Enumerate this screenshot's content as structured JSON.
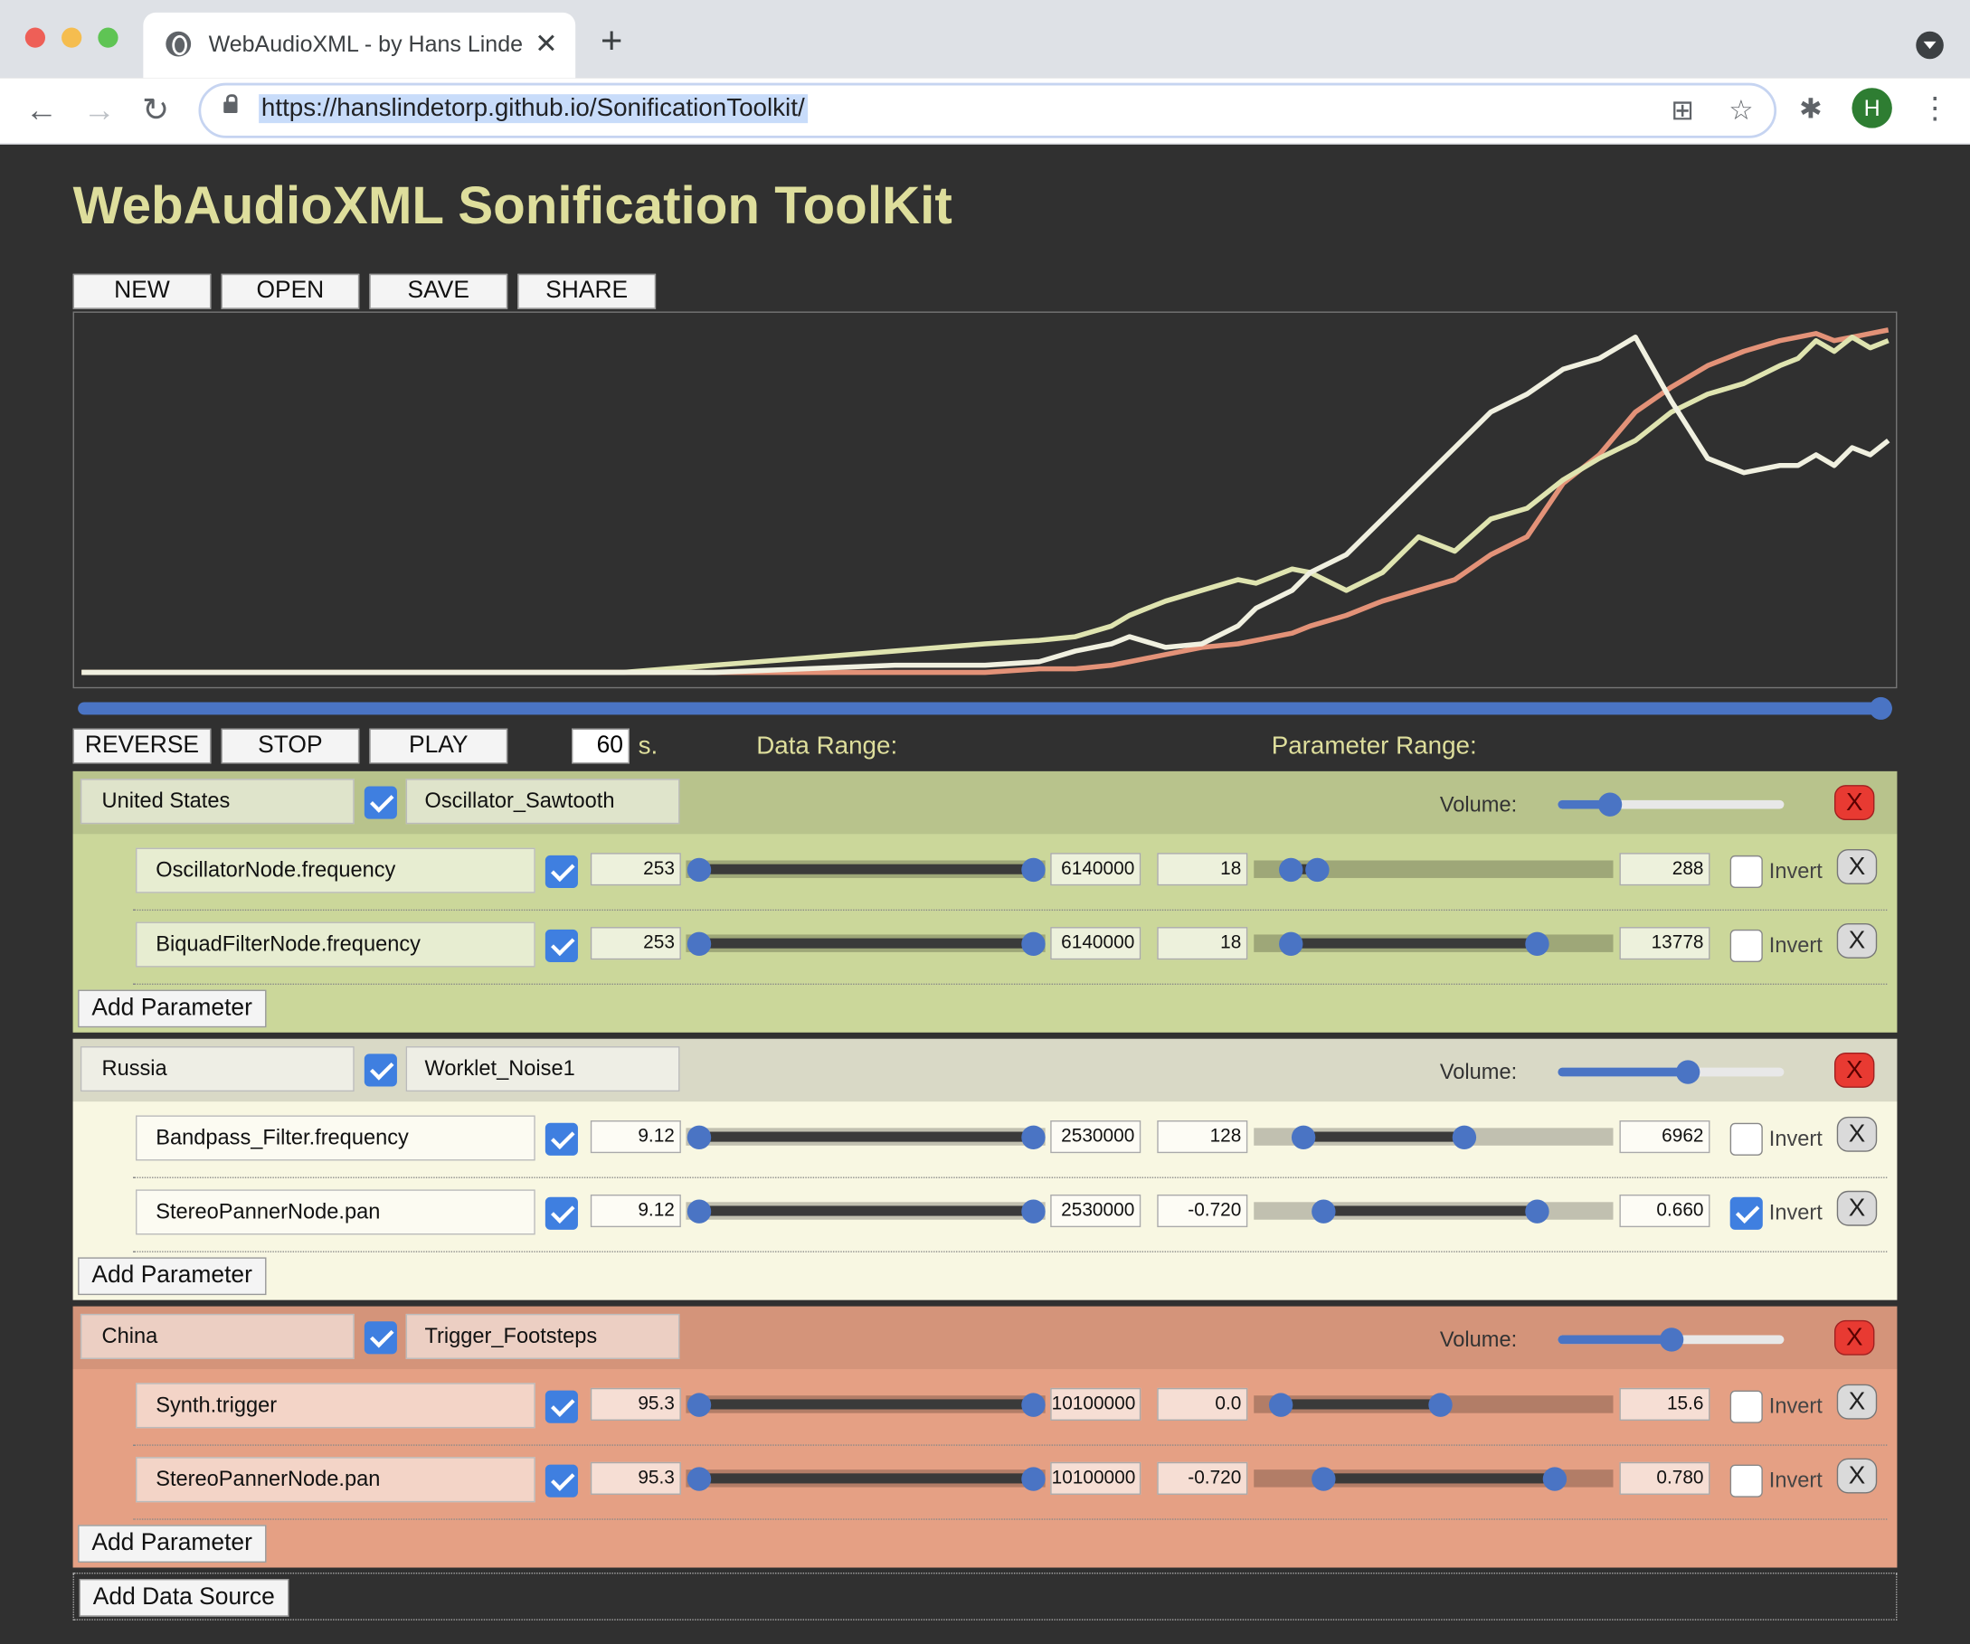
{
  "browser": {
    "tab_title": "WebAudioXML - by Hans Linde",
    "url": "https://hanslindetorp.github.io/SonificationToolkit/",
    "avatar_letter": "H"
  },
  "page": {
    "title": "WebAudioXML Sonification ToolKit",
    "file_buttons": [
      "NEW",
      "OPEN",
      "SAVE",
      "SHARE"
    ],
    "transport_buttons": [
      "REVERSE",
      "STOP",
      "PLAY"
    ],
    "duration_value": "60",
    "duration_unit": "s.",
    "data_range_label": "Data Range:",
    "parameter_range_label": "Parameter Range:",
    "add_data_source_label": "Add Data Source",
    "add_parameter_label": "Add Parameter",
    "volume_label": "Volume:",
    "invert_label": "Invert",
    "remove_label": "X",
    "playback_progress": 1.0
  },
  "colors": {
    "page_bg": "#303030",
    "title": "#dede9c",
    "slider_blue": "#4a74c4",
    "source_1": "#cbd79a",
    "source_2": "#f8f7e2",
    "source_3": "#e5a084",
    "line_1": "#f0f0e0",
    "line_2": "#dfe4b0",
    "line_3": "#e39278"
  },
  "sources": [
    {
      "name": "United States",
      "enabled": true,
      "synth": "Oscillator_Sawtooth",
      "volume": 0.23,
      "params": [
        {
          "name": "OscillatorNode.frequency",
          "enabled": true,
          "data_min": "253",
          "data_max": "6140000",
          "data_lo": 0.0,
          "data_hi": 1.0,
          "param_min": "18",
          "param_max": "288",
          "param_lo": 0.07,
          "param_hi": 0.15,
          "invert": false
        },
        {
          "name": "BiquadFilterNode.frequency",
          "enabled": true,
          "data_min": "253",
          "data_max": "6140000",
          "data_lo": 0.0,
          "data_hi": 1.0,
          "param_min": "18",
          "param_max": "13778",
          "param_lo": 0.07,
          "param_hi": 0.81,
          "invert": false
        }
      ]
    },
    {
      "name": "Russia",
      "enabled": true,
      "synth": "Worklet_Noise1",
      "volume": 0.57,
      "params": [
        {
          "name": "Bandpass_Filter.frequency",
          "enabled": true,
          "data_min": "9.12",
          "data_max": "2530000",
          "data_lo": 0.0,
          "data_hi": 1.0,
          "param_min": "128",
          "param_max": "6962",
          "param_lo": 0.11,
          "param_hi": 0.59,
          "invert": false
        },
        {
          "name": "StereoPannerNode.pan",
          "enabled": true,
          "data_min": "9.12",
          "data_max": "2530000",
          "data_lo": 0.0,
          "data_hi": 1.0,
          "param_min": "-0.720",
          "param_max": "0.660",
          "param_lo": 0.17,
          "param_hi": 0.81,
          "invert": true
        }
      ]
    },
    {
      "name": "China",
      "enabled": true,
      "synth": "Trigger_Footsteps",
      "volume": 0.5,
      "params": [
        {
          "name": "Synth.trigger",
          "enabled": true,
          "data_min": "95.3",
          "data_max": "10100000",
          "data_lo": 0.0,
          "data_hi": 1.0,
          "param_min": "0.0",
          "param_max": "15.6",
          "param_lo": 0.04,
          "param_hi": 0.52,
          "invert": false
        },
        {
          "name": "StereoPannerNode.pan",
          "enabled": true,
          "data_min": "95.3",
          "data_max": "10100000",
          "data_lo": 0.0,
          "data_hi": 1.0,
          "param_min": "-0.720",
          "param_max": "0.780",
          "param_lo": 0.17,
          "param_hi": 0.86,
          "invert": false
        }
      ]
    }
  ],
  "chart_data": {
    "type": "line",
    "title": "",
    "xlabel": "",
    "ylabel": "",
    "ylim": [
      0,
      1
    ],
    "grid": false,
    "x": [
      0,
      0.05,
      0.1,
      0.15,
      0.2,
      0.25,
      0.3,
      0.35,
      0.4,
      0.45,
      0.5,
      0.53,
      0.55,
      0.57,
      0.58,
      0.6,
      0.62,
      0.64,
      0.65,
      0.67,
      0.68,
      0.7,
      0.72,
      0.74,
      0.76,
      0.78,
      0.8,
      0.82,
      0.84,
      0.86,
      0.88,
      0.9,
      0.92,
      0.94,
      0.95,
      0.96,
      0.97,
      0.98,
      0.99,
      1.0
    ],
    "series": [
      {
        "name": "United States",
        "values": [
          0.02,
          0.02,
          0.02,
          0.02,
          0.02,
          0.02,
          0.02,
          0.02,
          0.03,
          0.04,
          0.04,
          0.05,
          0.08,
          0.1,
          0.12,
          0.09,
          0.1,
          0.15,
          0.2,
          0.25,
          0.3,
          0.35,
          0.45,
          0.55,
          0.65,
          0.75,
          0.8,
          0.87,
          0.9,
          0.96,
          0.78,
          0.62,
          0.58,
          0.6,
          0.6,
          0.63,
          0.6,
          0.65,
          0.63,
          0.67
        ]
      },
      {
        "name": "Russia",
        "values": [
          0.02,
          0.02,
          0.02,
          0.02,
          0.02,
          0.02,
          0.02,
          0.04,
          0.06,
          0.08,
          0.1,
          0.11,
          0.12,
          0.15,
          0.18,
          0.22,
          0.25,
          0.28,
          0.27,
          0.31,
          0.3,
          0.25,
          0.3,
          0.4,
          0.36,
          0.45,
          0.48,
          0.56,
          0.62,
          0.67,
          0.75,
          0.8,
          0.83,
          0.88,
          0.9,
          0.95,
          0.92,
          0.96,
          0.93,
          0.95
        ]
      },
      {
        "name": "China",
        "values": [
          0.02,
          0.02,
          0.02,
          0.02,
          0.02,
          0.02,
          0.02,
          0.02,
          0.02,
          0.02,
          0.02,
          0.03,
          0.03,
          0.04,
          0.05,
          0.07,
          0.09,
          0.1,
          0.11,
          0.13,
          0.15,
          0.18,
          0.22,
          0.25,
          0.28,
          0.35,
          0.4,
          0.55,
          0.63,
          0.75,
          0.82,
          0.88,
          0.92,
          0.95,
          0.96,
          0.97,
          0.95,
          0.96,
          0.97,
          0.98
        ]
      }
    ]
  }
}
